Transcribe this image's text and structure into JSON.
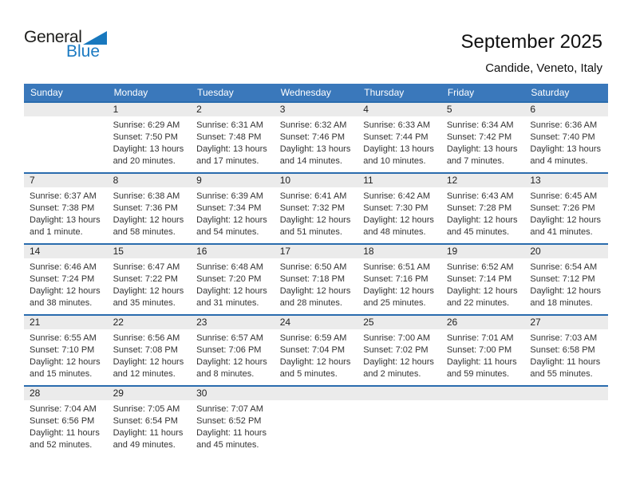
{
  "logo": {
    "general": "General",
    "blue": "Blue",
    "triangle_icon": "lower-right-triangle"
  },
  "header": {
    "title": "September 2025",
    "subtitle": "Candide, Veneto, Italy"
  },
  "colors": {
    "header_bg": "#3a78bb",
    "week_divider": "#2a6cae",
    "day_strip_bg": "#ebebeb",
    "logo_blue": "#1b7ac2",
    "logo_triangle_blue": "#1878be"
  },
  "calendar": {
    "weekdays": [
      "Sunday",
      "Monday",
      "Tuesday",
      "Wednesday",
      "Thursday",
      "Friday",
      "Saturday"
    ],
    "weeks": [
      [
        {
          "day": "",
          "sunrise": "",
          "sunset": "",
          "daylight1": "",
          "daylight2": ""
        },
        {
          "day": "1",
          "sunrise": "Sunrise: 6:29 AM",
          "sunset": "Sunset: 7:50 PM",
          "daylight1": "Daylight: 13 hours",
          "daylight2": "and 20 minutes."
        },
        {
          "day": "2",
          "sunrise": "Sunrise: 6:31 AM",
          "sunset": "Sunset: 7:48 PM",
          "daylight1": "Daylight: 13 hours",
          "daylight2": "and 17 minutes."
        },
        {
          "day": "3",
          "sunrise": "Sunrise: 6:32 AM",
          "sunset": "Sunset: 7:46 PM",
          "daylight1": "Daylight: 13 hours",
          "daylight2": "and 14 minutes."
        },
        {
          "day": "4",
          "sunrise": "Sunrise: 6:33 AM",
          "sunset": "Sunset: 7:44 PM",
          "daylight1": "Daylight: 13 hours",
          "daylight2": "and 10 minutes."
        },
        {
          "day": "5",
          "sunrise": "Sunrise: 6:34 AM",
          "sunset": "Sunset: 7:42 PM",
          "daylight1": "Daylight: 13 hours",
          "daylight2": "and 7 minutes."
        },
        {
          "day": "6",
          "sunrise": "Sunrise: 6:36 AM",
          "sunset": "Sunset: 7:40 PM",
          "daylight1": "Daylight: 13 hours",
          "daylight2": "and 4 minutes."
        }
      ],
      [
        {
          "day": "7",
          "sunrise": "Sunrise: 6:37 AM",
          "sunset": "Sunset: 7:38 PM",
          "daylight1": "Daylight: 13 hours",
          "daylight2": "and 1 minute."
        },
        {
          "day": "8",
          "sunrise": "Sunrise: 6:38 AM",
          "sunset": "Sunset: 7:36 PM",
          "daylight1": "Daylight: 12 hours",
          "daylight2": "and 58 minutes."
        },
        {
          "day": "9",
          "sunrise": "Sunrise: 6:39 AM",
          "sunset": "Sunset: 7:34 PM",
          "daylight1": "Daylight: 12 hours",
          "daylight2": "and 54 minutes."
        },
        {
          "day": "10",
          "sunrise": "Sunrise: 6:41 AM",
          "sunset": "Sunset: 7:32 PM",
          "daylight1": "Daylight: 12 hours",
          "daylight2": "and 51 minutes."
        },
        {
          "day": "11",
          "sunrise": "Sunrise: 6:42 AM",
          "sunset": "Sunset: 7:30 PM",
          "daylight1": "Daylight: 12 hours",
          "daylight2": "and 48 minutes."
        },
        {
          "day": "12",
          "sunrise": "Sunrise: 6:43 AM",
          "sunset": "Sunset: 7:28 PM",
          "daylight1": "Daylight: 12 hours",
          "daylight2": "and 45 minutes."
        },
        {
          "day": "13",
          "sunrise": "Sunrise: 6:45 AM",
          "sunset": "Sunset: 7:26 PM",
          "daylight1": "Daylight: 12 hours",
          "daylight2": "and 41 minutes."
        }
      ],
      [
        {
          "day": "14",
          "sunrise": "Sunrise: 6:46 AM",
          "sunset": "Sunset: 7:24 PM",
          "daylight1": "Daylight: 12 hours",
          "daylight2": "and 38 minutes."
        },
        {
          "day": "15",
          "sunrise": "Sunrise: 6:47 AM",
          "sunset": "Sunset: 7:22 PM",
          "daylight1": "Daylight: 12 hours",
          "daylight2": "and 35 minutes."
        },
        {
          "day": "16",
          "sunrise": "Sunrise: 6:48 AM",
          "sunset": "Sunset: 7:20 PM",
          "daylight1": "Daylight: 12 hours",
          "daylight2": "and 31 minutes."
        },
        {
          "day": "17",
          "sunrise": "Sunrise: 6:50 AM",
          "sunset": "Sunset: 7:18 PM",
          "daylight1": "Daylight: 12 hours",
          "daylight2": "and 28 minutes."
        },
        {
          "day": "18",
          "sunrise": "Sunrise: 6:51 AM",
          "sunset": "Sunset: 7:16 PM",
          "daylight1": "Daylight: 12 hours",
          "daylight2": "and 25 minutes."
        },
        {
          "day": "19",
          "sunrise": "Sunrise: 6:52 AM",
          "sunset": "Sunset: 7:14 PM",
          "daylight1": "Daylight: 12 hours",
          "daylight2": "and 22 minutes."
        },
        {
          "day": "20",
          "sunrise": "Sunrise: 6:54 AM",
          "sunset": "Sunset: 7:12 PM",
          "daylight1": "Daylight: 12 hours",
          "daylight2": "and 18 minutes."
        }
      ],
      [
        {
          "day": "21",
          "sunrise": "Sunrise: 6:55 AM",
          "sunset": "Sunset: 7:10 PM",
          "daylight1": "Daylight: 12 hours",
          "daylight2": "and 15 minutes."
        },
        {
          "day": "22",
          "sunrise": "Sunrise: 6:56 AM",
          "sunset": "Sunset: 7:08 PM",
          "daylight1": "Daylight: 12 hours",
          "daylight2": "and 12 minutes."
        },
        {
          "day": "23",
          "sunrise": "Sunrise: 6:57 AM",
          "sunset": "Sunset: 7:06 PM",
          "daylight1": "Daylight: 12 hours",
          "daylight2": "and 8 minutes."
        },
        {
          "day": "24",
          "sunrise": "Sunrise: 6:59 AM",
          "sunset": "Sunset: 7:04 PM",
          "daylight1": "Daylight: 12 hours",
          "daylight2": "and 5 minutes."
        },
        {
          "day": "25",
          "sunrise": "Sunrise: 7:00 AM",
          "sunset": "Sunset: 7:02 PM",
          "daylight1": "Daylight: 12 hours",
          "daylight2": "and 2 minutes."
        },
        {
          "day": "26",
          "sunrise": "Sunrise: 7:01 AM",
          "sunset": "Sunset: 7:00 PM",
          "daylight1": "Daylight: 11 hours",
          "daylight2": "and 59 minutes."
        },
        {
          "day": "27",
          "sunrise": "Sunrise: 7:03 AM",
          "sunset": "Sunset: 6:58 PM",
          "daylight1": "Daylight: 11 hours",
          "daylight2": "and 55 minutes."
        }
      ],
      [
        {
          "day": "28",
          "sunrise": "Sunrise: 7:04 AM",
          "sunset": "Sunset: 6:56 PM",
          "daylight1": "Daylight: 11 hours",
          "daylight2": "and 52 minutes."
        },
        {
          "day": "29",
          "sunrise": "Sunrise: 7:05 AM",
          "sunset": "Sunset: 6:54 PM",
          "daylight1": "Daylight: 11 hours",
          "daylight2": "and 49 minutes."
        },
        {
          "day": "30",
          "sunrise": "Sunrise: 7:07 AM",
          "sunset": "Sunset: 6:52 PM",
          "daylight1": "Daylight: 11 hours",
          "daylight2": "and 45 minutes."
        },
        {
          "day": "",
          "sunrise": "",
          "sunset": "",
          "daylight1": "",
          "daylight2": ""
        },
        {
          "day": "",
          "sunrise": "",
          "sunset": "",
          "daylight1": "",
          "daylight2": ""
        },
        {
          "day": "",
          "sunrise": "",
          "sunset": "",
          "daylight1": "",
          "daylight2": ""
        },
        {
          "day": "",
          "sunrise": "",
          "sunset": "",
          "daylight1": "",
          "daylight2": ""
        }
      ]
    ]
  }
}
